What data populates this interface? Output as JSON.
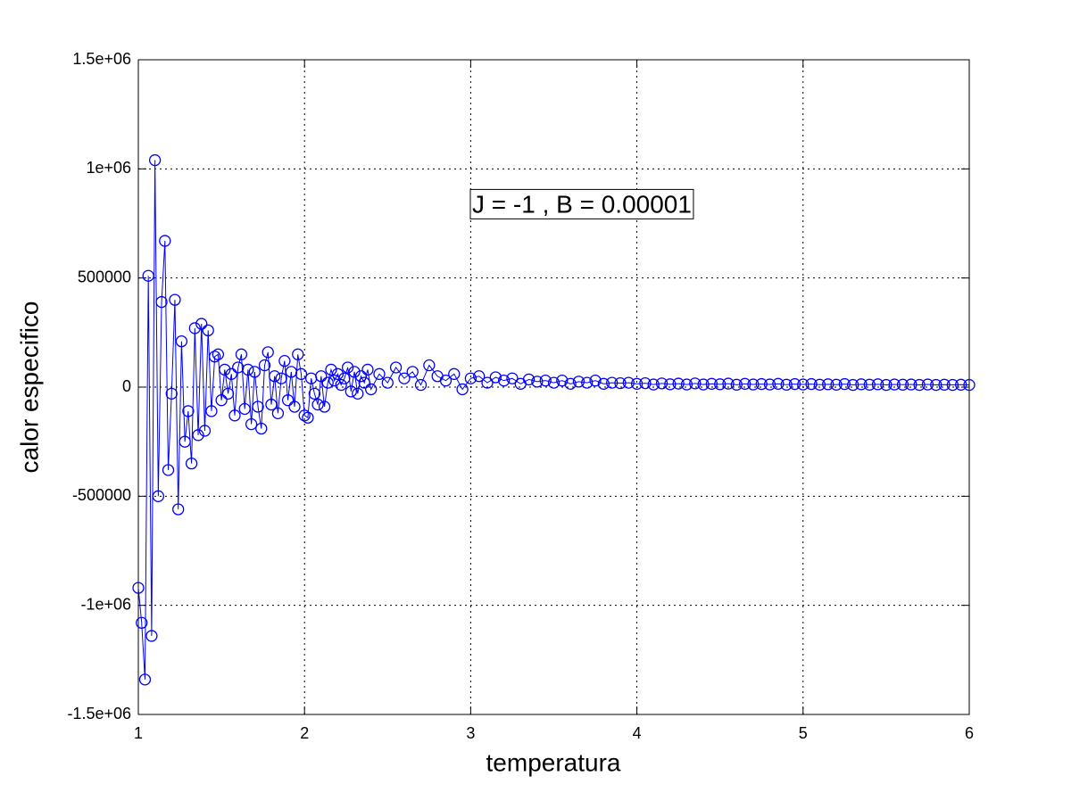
{
  "chart_data": {
    "type": "line",
    "xlabel": "temperatura",
    "ylabel": "calor especifico",
    "annotation": "J = -1 , B = 0.00001",
    "xlim": [
      1,
      6
    ],
    "ylim": [
      -1500000,
      1500000
    ],
    "xticks": [
      1,
      2,
      3,
      4,
      5,
      6
    ],
    "yticks": [
      {
        "value": -1500000,
        "label": "-1.5e+06"
      },
      {
        "value": -1000000,
        "label": "-1e+06"
      },
      -500000,
      0,
      500000,
      {
        "value": 1000000,
        "label": "1e+06"
      },
      {
        "value": 1500000,
        "label": "1.5e+06"
      }
    ],
    "grid": true,
    "marker": "circle",
    "series": [
      {
        "color": "#0000ff",
        "x": [
          1.0,
          1.02,
          1.04,
          1.06,
          1.08,
          1.1,
          1.12,
          1.14,
          1.16,
          1.18,
          1.2,
          1.22,
          1.24,
          1.26,
          1.28,
          1.3,
          1.32,
          1.34,
          1.36,
          1.38,
          1.4,
          1.42,
          1.44,
          1.46,
          1.48,
          1.5,
          1.52,
          1.54,
          1.56,
          1.58,
          1.6,
          1.62,
          1.64,
          1.66,
          1.68,
          1.7,
          1.72,
          1.74,
          1.76,
          1.78,
          1.8,
          1.82,
          1.84,
          1.86,
          1.88,
          1.9,
          1.92,
          1.94,
          1.96,
          1.98,
          2.0,
          2.02,
          2.04,
          2.06,
          2.08,
          2.1,
          2.12,
          2.14,
          2.16,
          2.18,
          2.2,
          2.22,
          2.24,
          2.26,
          2.28,
          2.3,
          2.32,
          2.34,
          2.36,
          2.38,
          2.4,
          2.45,
          2.5,
          2.55,
          2.6,
          2.65,
          2.7,
          2.75,
          2.8,
          2.85,
          2.9,
          2.95,
          3.0,
          3.05,
          3.1,
          3.15,
          3.2,
          3.25,
          3.3,
          3.35,
          3.4,
          3.45,
          3.5,
          3.55,
          3.6,
          3.65,
          3.7,
          3.75,
          3.8,
          3.85,
          3.9,
          3.95,
          4.0,
          4.05,
          4.1,
          4.15,
          4.2,
          4.25,
          4.3,
          4.35,
          4.4,
          4.45,
          4.5,
          4.55,
          4.6,
          4.65,
          4.7,
          4.75,
          4.8,
          4.85,
          4.9,
          4.95,
          5.0,
          5.05,
          5.1,
          5.15,
          5.2,
          5.25,
          5.3,
          5.35,
          5.4,
          5.45,
          5.5,
          5.55,
          5.6,
          5.65,
          5.7,
          5.75,
          5.8,
          5.85,
          5.9,
          5.95,
          6.0
        ],
        "values": [
          -920000,
          -1080000,
          -1340000,
          510000,
          -1140000,
          1040000,
          -500000,
          390000,
          670000,
          -380000,
          -30000,
          400000,
          -560000,
          210000,
          -250000,
          -110000,
          -350000,
          270000,
          -220000,
          290000,
          -200000,
          260000,
          -110000,
          140000,
          150000,
          -60000,
          80000,
          -30000,
          60000,
          -130000,
          90000,
          150000,
          -100000,
          80000,
          -170000,
          70000,
          -90000,
          -190000,
          100000,
          160000,
          -80000,
          50000,
          -120000,
          40000,
          120000,
          -60000,
          70000,
          -90000,
          150000,
          60000,
          -130000,
          -140000,
          40000,
          -30000,
          -80000,
          50000,
          -90000,
          20000,
          80000,
          30000,
          60000,
          10000,
          40000,
          90000,
          -20000,
          70000,
          -30000,
          50000,
          20000,
          80000,
          -10000,
          60000,
          20000,
          90000,
          40000,
          70000,
          10000,
          100000,
          50000,
          30000,
          60000,
          -10000,
          40000,
          50000,
          20000,
          45000,
          30000,
          40000,
          15000,
          35000,
          25000,
          30000,
          20000,
          30000,
          15000,
          25000,
          20000,
          30000,
          15000,
          20000,
          18000,
          20000,
          15000,
          18000,
          12000,
          17000,
          13000,
          16000,
          12000,
          17000,
          12000,
          15000,
          13000,
          16000,
          11000,
          15000,
          12000,
          14000,
          12000,
          15000,
          11000,
          14000,
          12000,
          14000,
          11000,
          13000,
          11000,
          14000,
          10000,
          13000,
          11000,
          13000,
          10000,
          12000,
          11000,
          12000,
          10000,
          12000,
          10000,
          11000,
          10000,
          11000,
          10000
        ]
      }
    ]
  }
}
